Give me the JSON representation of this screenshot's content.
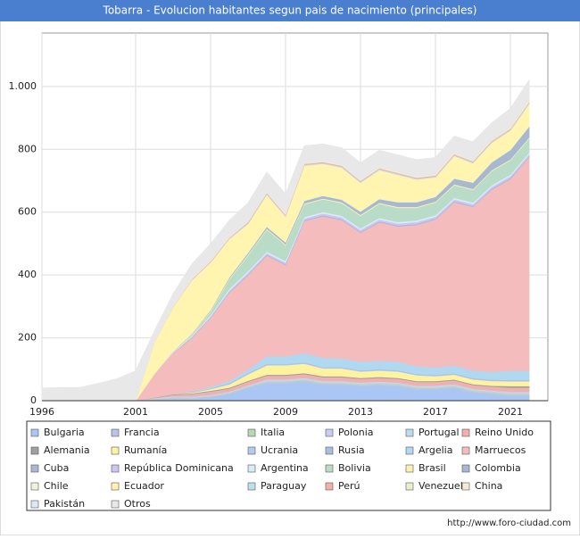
{
  "chart_data": {
    "type": "stacked-area",
    "title": "Tobarra - Evolucion habitantes segun pais de nacimiento (principales)",
    "source": "http://www.foro-ciudad.com",
    "x": [
      1996,
      1997,
      1998,
      1999,
      2000,
      2001,
      2002,
      2003,
      2004,
      2005,
      2006,
      2007,
      2008,
      2009,
      2010,
      2011,
      2012,
      2013,
      2014,
      2015,
      2016,
      2017,
      2018,
      2019,
      2020,
      2021,
      2022
    ],
    "xlim": [
      1996,
      2023
    ],
    "xticks": [
      1996,
      2001,
      2005,
      2009,
      2013,
      2017,
      2021
    ],
    "ylim": [
      0,
      1170
    ],
    "yticks": [
      0,
      200,
      400,
      600,
      800,
      {
        "value": 1000,
        "label": "1.000"
      }
    ],
    "grid": true,
    "series": [
      {
        "name": "Bulgaria",
        "color": "#a9c6f5",
        "values": [
          0,
          0,
          0,
          0,
          0,
          0,
          3,
          5,
          5,
          10,
          20,
          40,
          55,
          55,
          60,
          50,
          50,
          45,
          48,
          45,
          35,
          35,
          40,
          25,
          20,
          15,
          15
        ]
      },
      {
        "name": "Francia",
        "color": "#b9c4e8",
        "values": [
          0,
          0,
          0,
          0,
          0,
          0,
          2,
          3,
          3,
          3,
          3,
          3,
          4,
          4,
          4,
          4,
          4,
          4,
          4,
          4,
          4,
          4,
          4,
          4,
          4,
          4,
          4
        ]
      },
      {
        "name": "Italia",
        "color": "#b8dab0",
        "values": [
          0,
          0,
          0,
          0,
          0,
          0,
          1,
          2,
          2,
          2,
          2,
          2,
          3,
          3,
          3,
          3,
          3,
          3,
          3,
          3,
          3,
          3,
          3,
          3,
          3,
          3,
          3
        ]
      },
      {
        "name": "Polonia",
        "color": "#c9cdf0",
        "values": [
          0,
          0,
          0,
          0,
          0,
          0,
          1,
          2,
          2,
          2,
          2,
          2,
          3,
          3,
          3,
          3,
          3,
          3,
          3,
          3,
          3,
          3,
          3,
          3,
          3,
          3,
          3
        ]
      },
      {
        "name": "Portugal",
        "color": "#bcdcf0",
        "values": [
          0,
          0,
          0,
          0,
          0,
          0,
          1,
          2,
          2,
          2,
          2,
          2,
          3,
          3,
          3,
          3,
          3,
          3,
          3,
          3,
          3,
          3,
          3,
          3,
          3,
          3,
          3
        ]
      },
      {
        "name": "Reino Unido",
        "color": "#f0b0b0",
        "values": [
          0,
          0,
          0,
          0,
          0,
          0,
          2,
          5,
          8,
          10,
          10,
          12,
          12,
          12,
          12,
          12,
          12,
          12,
          12,
          12,
          12,
          12,
          12,
          12,
          12,
          14,
          14
        ]
      },
      {
        "name": "Alemania",
        "color": "#a0a0a0",
        "values": [
          0,
          0,
          0,
          0,
          0,
          0,
          1,
          2,
          2,
          3,
          3,
          3,
          3,
          3,
          3,
          3,
          3,
          3,
          3,
          3,
          3,
          3,
          3,
          3,
          3,
          5,
          5
        ]
      },
      {
        "name": "Rumanía",
        "color": "#fff3a0",
        "values": [
          0,
          0,
          0,
          0,
          0,
          0,
          0,
          0,
          2,
          5,
          10,
          20,
          30,
          30,
          30,
          25,
          25,
          20,
          20,
          20,
          18,
          15,
          15,
          15,
          15,
          15,
          15
        ]
      },
      {
        "name": "Ucrania",
        "color": "#b9c8ee",
        "values": [
          0,
          0,
          0,
          0,
          0,
          0,
          0,
          0,
          1,
          1,
          2,
          2,
          2,
          2,
          2,
          2,
          2,
          2,
          2,
          2,
          2,
          2,
          2,
          2,
          2,
          2,
          2
        ]
      },
      {
        "name": "Rusia",
        "color": "#a8c0e0",
        "values": [
          0,
          0,
          0,
          0,
          0,
          0,
          0,
          0,
          1,
          1,
          2,
          2,
          2,
          2,
          2,
          2,
          2,
          2,
          2,
          2,
          2,
          2,
          2,
          2,
          2,
          2,
          2
        ]
      },
      {
        "name": "Argelia",
        "color": "#b0d8f0",
        "values": [
          0,
          0,
          0,
          0,
          0,
          0,
          0,
          0,
          2,
          5,
          8,
          12,
          25,
          25,
          30,
          30,
          28,
          28,
          28,
          28,
          25,
          25,
          25,
          25,
          25,
          30,
          30
        ]
      },
      {
        "name": "Marruecos",
        "color": "#f4bcbc",
        "values": [
          0,
          0,
          0,
          0,
          0,
          0,
          75,
          130,
          170,
          220,
          280,
          300,
          320,
          290,
          420,
          450,
          440,
          410,
          440,
          430,
          450,
          470,
          520,
          520,
          580,
          610,
          680
        ]
      },
      {
        "name": "Cuba",
        "color": "#a9b8d8",
        "values": [
          0,
          0,
          0,
          0,
          0,
          0,
          0,
          1,
          2,
          2,
          3,
          3,
          3,
          3,
          3,
          3,
          3,
          3,
          3,
          3,
          3,
          3,
          3,
          3,
          3,
          3,
          3
        ]
      },
      {
        "name": "República Dominicana",
        "color": "#d0c4f4",
        "values": [
          0,
          0,
          0,
          0,
          0,
          0,
          0,
          1,
          2,
          3,
          4,
          5,
          5,
          5,
          5,
          6,
          6,
          6,
          6,
          6,
          6,
          6,
          6,
          6,
          6,
          6,
          6
        ]
      },
      {
        "name": "Argentina",
        "color": "#d8ecf8",
        "values": [
          0,
          0,
          0,
          0,
          0,
          0,
          0,
          2,
          3,
          4,
          5,
          5,
          5,
          5,
          5,
          5,
          5,
          5,
          5,
          5,
          5,
          5,
          5,
          5,
          5,
          5,
          5
        ]
      },
      {
        "name": "Bolivia",
        "color": "#b8dcc8",
        "values": [
          0,
          0,
          0,
          0,
          0,
          0,
          0,
          0,
          2,
          10,
          30,
          50,
          70,
          50,
          40,
          40,
          40,
          40,
          45,
          45,
          40,
          40,
          40,
          40,
          45,
          45,
          45
        ]
      },
      {
        "name": "Brasil",
        "color": "#fff0b0",
        "values": [
          0,
          0,
          0,
          0,
          0,
          0,
          0,
          1,
          2,
          3,
          3,
          3,
          3,
          3,
          3,
          3,
          3,
          3,
          3,
          3,
          3,
          3,
          3,
          3,
          3,
          3,
          3
        ]
      },
      {
        "name": "Colombia",
        "color": "#a8b8d0",
        "values": [
          0,
          0,
          0,
          0,
          0,
          0,
          0,
          1,
          2,
          3,
          4,
          5,
          6,
          6,
          8,
          8,
          8,
          10,
          12,
          15,
          15,
          15,
          18,
          20,
          25,
          30,
          35
        ]
      },
      {
        "name": "Chile",
        "color": "#eef4d8",
        "values": [
          0,
          0,
          0,
          0,
          0,
          0,
          0,
          1,
          1,
          1,
          2,
          2,
          2,
          2,
          2,
          2,
          2,
          2,
          2,
          2,
          2,
          2,
          2,
          2,
          2,
          2,
          2
        ]
      },
      {
        "name": "Ecuador",
        "color": "#fff4b0",
        "values": [
          0,
          0,
          0,
          0,
          0,
          0,
          100,
          140,
          170,
          150,
          120,
          90,
          100,
          80,
          110,
          100,
          100,
          90,
          90,
          85,
          70,
          60,
          70,
          60,
          60,
          60,
          70
        ]
      },
      {
        "name": "Paraguay",
        "color": "#bce0ee",
        "values": [
          0,
          0,
          0,
          0,
          0,
          0,
          0,
          0,
          1,
          2,
          2,
          3,
          3,
          3,
          3,
          3,
          3,
          3,
          3,
          3,
          3,
          3,
          3,
          3,
          3,
          3,
          3
        ]
      },
      {
        "name": "Perú",
        "color": "#f4b0b0",
        "values": [
          0,
          0,
          0,
          0,
          0,
          0,
          0,
          1,
          2,
          2,
          2,
          3,
          3,
          3,
          3,
          3,
          3,
          3,
          3,
          3,
          3,
          3,
          3,
          3,
          3,
          3,
          3
        ]
      },
      {
        "name": "Venezuela",
        "color": "#e8f0c8",
        "values": [
          0,
          0,
          0,
          0,
          0,
          0,
          0,
          0,
          0,
          1,
          1,
          1,
          1,
          1,
          1,
          1,
          1,
          1,
          1,
          1,
          1,
          1,
          1,
          1,
          1,
          2,
          3
        ]
      },
      {
        "name": "China",
        "color": "#f4ecd0",
        "values": [
          0,
          0,
          0,
          0,
          0,
          0,
          1,
          2,
          2,
          3,
          3,
          3,
          3,
          3,
          4,
          4,
          4,
          4,
          4,
          4,
          4,
          4,
          4,
          4,
          4,
          5,
          5
        ]
      },
      {
        "name": "Pakistán",
        "color": "#dce8f8",
        "values": [
          0,
          0,
          0,
          0,
          0,
          0,
          0,
          0,
          1,
          1,
          1,
          2,
          2,
          2,
          2,
          2,
          2,
          2,
          2,
          2,
          2,
          2,
          2,
          2,
          2,
          2,
          2
        ]
      },
      {
        "name": "Otros",
        "color": "#e8e8e8",
        "values": [
          40,
          42,
          42,
          55,
          70,
          95,
          35,
          40,
          45,
          50,
          50,
          55,
          60,
          60,
          50,
          50,
          50,
          50,
          50,
          50,
          50,
          50,
          50,
          55,
          50,
          55,
          60
        ]
      }
    ]
  }
}
